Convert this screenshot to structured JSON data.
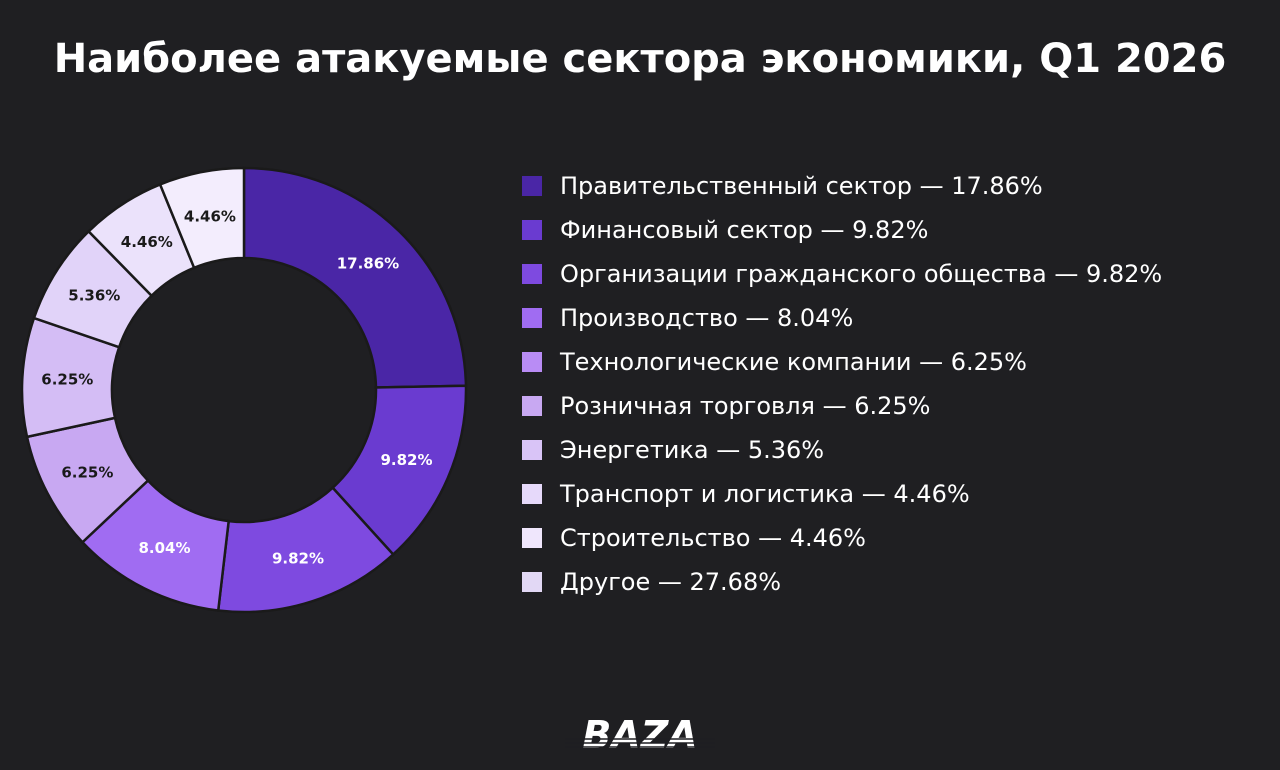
{
  "title": "Наиболее атакуемые сектора экономики, Q1 2026",
  "chart_data": {
    "type": "pie",
    "donut": true,
    "title": "Наиболее атакуемые сектора экономики, Q1 2026",
    "slices": [
      {
        "name": "Правительственный сектор",
        "value": 17.86,
        "label": "17.86%",
        "color": "#4a26a6",
        "legend": "Правительственный сектор — 17.86%"
      },
      {
        "name": "Финансовый сектор",
        "value": 9.82,
        "label": "9.82%",
        "color": "#6a3bd0",
        "legend": "Финансовый сектор — 9.82%"
      },
      {
        "name": "Организации гражданского общества",
        "value": 9.82,
        "label": "9.82%",
        "color": "#7e4ae0",
        "legend": "Организации гражданского общества — 9.82%"
      },
      {
        "name": "Производство",
        "value": 8.04,
        "label": "8.04%",
        "color": "#a06cf2",
        "legend": "Производство — 8.04%"
      },
      {
        "name": "Технологические компании",
        "value": 6.25,
        "label": "6.25%",
        "color": "#b98cf5",
        "legend": "Технологические компании — 6.25%"
      },
      {
        "name": "Розничная торговля",
        "value": 6.25,
        "label": "6.25%",
        "color": "#c8a8f2",
        "legend": "Розничная торговля — 6.25%"
      },
      {
        "name": "Энергетика",
        "value": 5.36,
        "label": "5.36%",
        "color": "#d9c4f7",
        "legend": "Энергетика — 5.36%"
      },
      {
        "name": "Транспорт и логистика",
        "value": 4.46,
        "label": "4.46%",
        "color": "#e6d9fa",
        "legend": "Транспорт и логистика — 4.46%"
      },
      {
        "name": "Строительство",
        "value": 4.46,
        "label": "4.46%",
        "color": "#efe6fc",
        "legend": "Строительство — 4.46%"
      },
      {
        "name": "Другое",
        "value": 27.68,
        "label": "27.68%",
        "color": "#e2d8f5",
        "legend": "Другое — 27.68%"
      }
    ],
    "visible_wedges": [
      {
        "label": "17.86%",
        "value": 17.86,
        "color": "#4a26a6"
      },
      {
        "label": "9.82%",
        "value": 9.82,
        "color": "#6a3bd0"
      },
      {
        "label": "9.82%",
        "value": 9.82,
        "color": "#7e4ae0"
      },
      {
        "label": "8.04%",
        "value": 8.04,
        "color": "#a06cf2"
      },
      {
        "label": "6.25%",
        "value": 6.25,
        "color": "#c8a8f2"
      },
      {
        "label": "6.25%",
        "value": 6.25,
        "color": "#d4bdf5"
      },
      {
        "label": "5.36%",
        "value": 5.36,
        "color": "#e1d3f9"
      },
      {
        "label": "4.46%",
        "value": 4.46,
        "color": "#ebe2fb"
      },
      {
        "label": "4.46%",
        "value": 4.46,
        "color": "#f3edfd"
      }
    ],
    "legend_position": "right",
    "label_text_dark": "#1a1a1a",
    "label_text_light": "#ffffff"
  },
  "logo": {
    "text": "BAZA",
    "color": "#ffffff"
  }
}
